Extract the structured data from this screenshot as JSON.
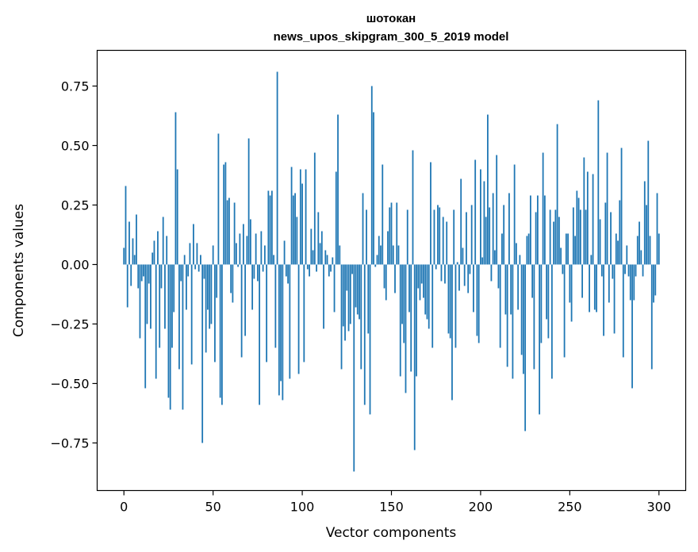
{
  "chart_data": {
    "type": "bar",
    "title": "шотокан",
    "subtitle": "news_upos_skipgram_300_5_2019 model",
    "xlabel": "Vector components",
    "ylabel": "Components values",
    "xlim": [
      -15,
      315
    ],
    "ylim": [
      -0.95,
      0.9
    ],
    "xticks": [
      0,
      50,
      100,
      150,
      200,
      250,
      300
    ],
    "xtick_labels": [
      "0",
      "50",
      "100",
      "150",
      "200",
      "250",
      "300"
    ],
    "yticks": [
      0.75,
      0.5,
      0.25,
      0.0,
      -0.25,
      -0.5,
      -0.75
    ],
    "ytick_labels": [
      "0.75",
      "0.50",
      "0.25",
      "0.00",
      "−0.25",
      "−0.50",
      "−0.75"
    ],
    "bar_color": "#1f77b4",
    "values": [
      0.07,
      0.33,
      -0.18,
      0.18,
      -0.09,
      0.11,
      0.04,
      0.21,
      -0.1,
      -0.31,
      -0.07,
      -0.05,
      -0.52,
      -0.25,
      -0.08,
      -0.27,
      0.05,
      0.1,
      -0.48,
      0.14,
      -0.35,
      -0.1,
      0.2,
      -0.27,
      0.12,
      -0.56,
      -0.61,
      -0.35,
      -0.2,
      0.64,
      0.4,
      -0.44,
      -0.07,
      -0.61,
      0.04,
      -0.19,
      -0.05,
      0.09,
      -0.42,
      0.17,
      -0.02,
      0.09,
      -0.03,
      0.04,
      -0.75,
      -0.06,
      -0.37,
      -0.19,
      -0.27,
      -0.25,
      0.08,
      -0.41,
      -0.14,
      0.55,
      -0.56,
      -0.59,
      0.42,
      0.43,
      0.27,
      0.28,
      -0.12,
      -0.16,
      0.26,
      0.09,
      -0.01,
      0.13,
      -0.39,
      0.17,
      -0.3,
      0.12,
      0.53,
      0.19,
      -0.19,
      -0.06,
      0.13,
      -0.07,
      -0.59,
      0.14,
      -0.03,
      0.08,
      -0.41,
      0.31,
      0.29,
      0.31,
      0.04,
      -0.35,
      0.81,
      -0.55,
      -0.49,
      -0.57,
      0.1,
      -0.05,
      -0.08,
      -0.48,
      0.41,
      0.29,
      0.3,
      0.2,
      -0.46,
      0.4,
      0.34,
      -0.41,
      0.4,
      -0.02,
      -0.05,
      0.15,
      0.06,
      0.47,
      -0.03,
      0.22,
      0.09,
      0.14,
      -0.27,
      0.06,
      0.04,
      -0.05,
      -0.03,
      0.03,
      -0.2,
      0.39,
      0.63,
      0.08,
      -0.44,
      -0.26,
      -0.32,
      -0.11,
      -0.28,
      -0.25,
      -0.04,
      -0.87,
      -0.18,
      -0.21,
      -0.23,
      -0.44,
      0.3,
      -0.59,
      0.23,
      -0.29,
      -0.63,
      0.75,
      0.64,
      -0.01,
      0.04,
      0.12,
      0.08,
      0.42,
      -0.1,
      -0.15,
      0.14,
      0.24,
      0.26,
      0.08,
      -0.12,
      0.26,
      0.08,
      -0.47,
      -0.25,
      -0.33,
      -0.54,
      0.23,
      -0.2,
      -0.45,
      0.48,
      -0.78,
      -0.47,
      -0.1,
      -0.15,
      -0.08,
      -0.14,
      -0.21,
      -0.23,
      -0.27,
      0.43,
      -0.35,
      0.23,
      -0.02,
      0.25,
      0.24,
      -0.07,
      0.2,
      -0.08,
      0.18,
      -0.29,
      -0.31,
      -0.57,
      0.23,
      -0.35,
      0.01,
      -0.11,
      0.36,
      0.07,
      -0.09,
      0.22,
      -0.12,
      -0.04,
      0.25,
      -0.2,
      0.44,
      -0.3,
      -0.33,
      0.4,
      0.03,
      0.35,
      0.2,
      0.63,
      0.24,
      -0.07,
      0.3,
      0.06,
      0.46,
      -0.1,
      -0.35,
      0.13,
      0.25,
      -0.21,
      -0.43,
      0.3,
      -0.21,
      -0.48,
      0.42,
      0.09,
      -0.19,
      0.04,
      -0.38,
      -0.46,
      -0.7,
      0.12,
      0.13,
      0.29,
      -0.14,
      -0.44,
      0.22,
      0.29,
      -0.63,
      -0.33,
      0.47,
      0.29,
      -0.23,
      -0.31,
      0.23,
      -0.48,
      0.18,
      0.23,
      0.59,
      0.2,
      0.07,
      -0.04,
      -0.39,
      0.13,
      0.13,
      -0.16,
      -0.24,
      0.24,
      0.12,
      0.31,
      0.28,
      0.23,
      -0.14,
      0.45,
      0.23,
      0.39,
      -0.2,
      0.04,
      0.38,
      -0.19,
      -0.2,
      0.69,
      0.19,
      -0.05,
      -0.3,
      0.26,
      0.47,
      -0.16,
      0.22,
      -0.06,
      -0.29,
      0.13,
      0.1,
      0.27,
      0.49,
      -0.39,
      -0.04,
      0.08,
      -0.05,
      -0.15,
      -0.52,
      -0.15,
      -0.05,
      0.12,
      0.18,
      0.06,
      -0.05,
      0.35,
      0.25,
      0.52,
      0.12,
      -0.44,
      -0.16,
      -0.13,
      0.3,
      0.13
    ]
  }
}
